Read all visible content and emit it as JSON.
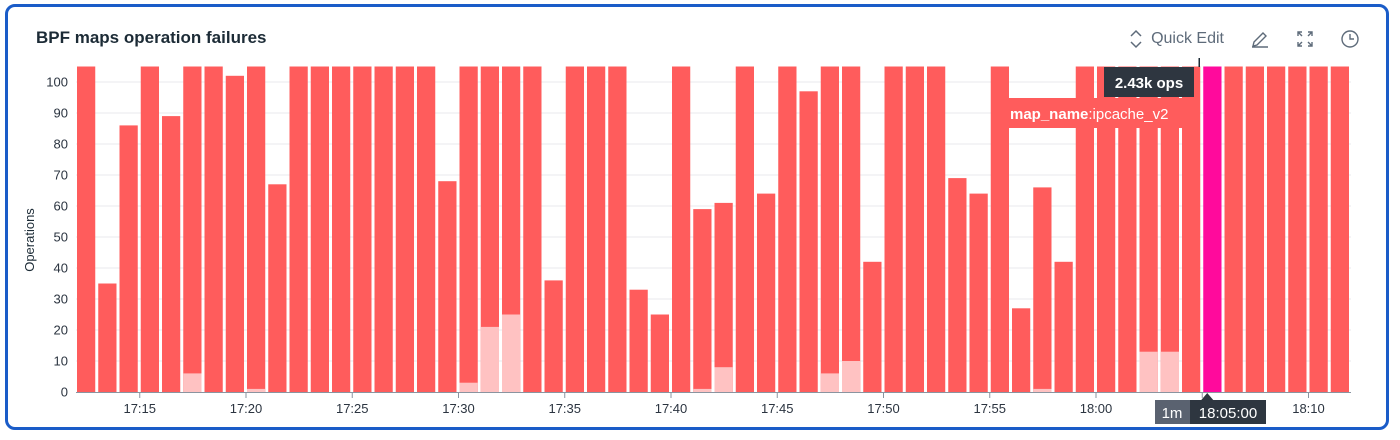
{
  "widget": {
    "title": "BPF maps operation failures",
    "quick_edit_label": "Quick Edit",
    "icons": [
      "chevron-up-down-icon",
      "pencil-icon",
      "expand-icon",
      "clock-icon"
    ]
  },
  "tooltip": {
    "value": "2.43k ops",
    "tag_key": "map_name",
    "tag_value": ":ipcache_v2",
    "interval": "1m",
    "time": "18:05:00"
  },
  "colors": {
    "primary": "#ff5c5c",
    "secondary": "#ffc2c2",
    "highlight": "#ff0a9c",
    "border": "#1a5cc8"
  },
  "chart_data": {
    "type": "bar",
    "stacked": true,
    "ylabel": "Operations",
    "xlabel": "",
    "ylim": [
      0,
      105
    ],
    "yticks": [
      0,
      10,
      20,
      30,
      40,
      50,
      60,
      70,
      80,
      90,
      100
    ],
    "xtick_labels": [
      "17:15",
      "17:20",
      "17:25",
      "17:30",
      "17:35",
      "17:40",
      "17:45",
      "17:50",
      "17:55",
      "18:00",
      "18:05",
      "18:10"
    ],
    "grid": true,
    "note_clipped": "bars drawn to top of plot exceed the visible range",
    "categories": [
      "17:12",
      "17:13",
      "17:14",
      "17:15",
      "17:16",
      "17:17",
      "17:18",
      "17:19",
      "17:20",
      "17:21",
      "17:22",
      "17:23",
      "17:24",
      "17:25",
      "17:26",
      "17:27",
      "17:28",
      "17:29",
      "17:30",
      "17:31",
      "17:32",
      "17:33",
      "17:34",
      "17:35",
      "17:36",
      "17:37",
      "17:38",
      "17:39",
      "17:40",
      "17:41",
      "17:42",
      "17:43",
      "17:44",
      "17:45",
      "17:46",
      "17:47",
      "17:48",
      "17:49",
      "17:50",
      "17:51",
      "17:52",
      "17:53",
      "17:54",
      "17:55",
      "17:56",
      "17:57",
      "17:58",
      "17:59",
      "18:00",
      "18:01",
      "18:02",
      "18:03",
      "18:04",
      "18:05",
      "18:06",
      "18:07",
      "18:08",
      "18:09",
      "18:10",
      "18:11"
    ],
    "totals": [
      105,
      35,
      86,
      105,
      89,
      105,
      105,
      102,
      105,
      67,
      105,
      105,
      105,
      105,
      105,
      105,
      105,
      68,
      105,
      105,
      105,
      105,
      36,
      105,
      105,
      105,
      33,
      25,
      105,
      59,
      61,
      105,
      64,
      105,
      97,
      105,
      105,
      42,
      105,
      105,
      105,
      69,
      64,
      105,
      27,
      66,
      42,
      105,
      105,
      105,
      105,
      105,
      105,
      2430,
      105,
      105,
      105,
      105,
      105,
      105
    ],
    "secondary_values": [
      0,
      0,
      0,
      0,
      0,
      6,
      0,
      0,
      1,
      0,
      0,
      0,
      0,
      0,
      0,
      0,
      0,
      0,
      3,
      21,
      25,
      0,
      0,
      0,
      0,
      0,
      0,
      0,
      0,
      1,
      8,
      0,
      0,
      0,
      0,
      6,
      10,
      0,
      0,
      0,
      0,
      0,
      0,
      0,
      0,
      1,
      0,
      0,
      0,
      0,
      13,
      13,
      0,
      0,
      0,
      0,
      0,
      0,
      0,
      0
    ],
    "highlighted": "18:05"
  }
}
